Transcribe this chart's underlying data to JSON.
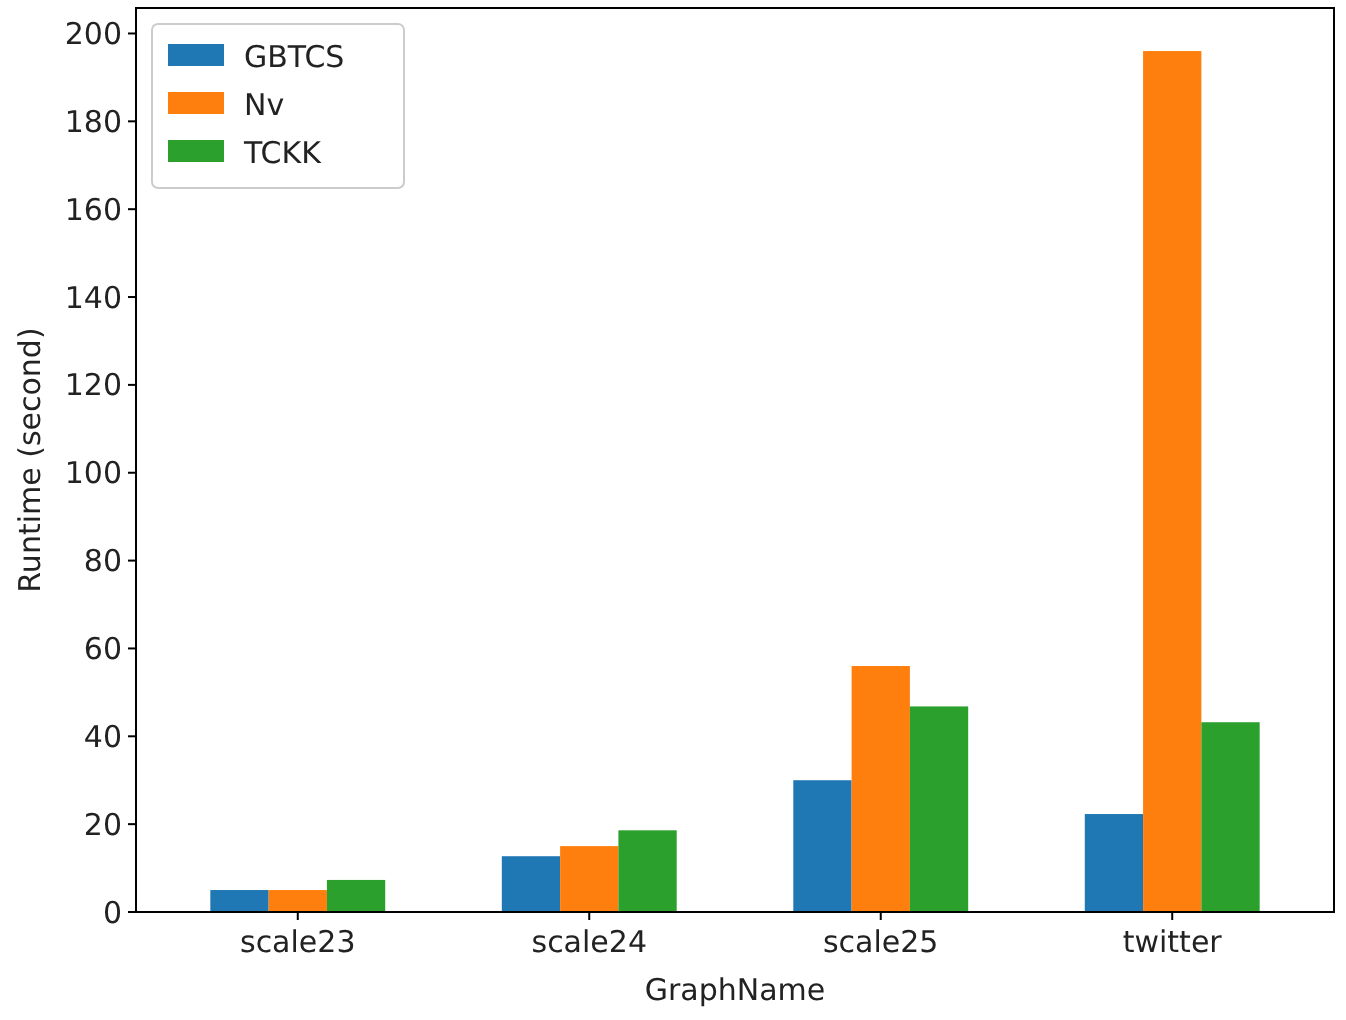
{
  "chart_data": {
    "type": "bar",
    "xlabel": "GraphName",
    "ylabel": "Runtime (second)",
    "categories": [
      "scale23",
      "scale24",
      "scale25",
      "twitter"
    ],
    "series": [
      {
        "name": "GBTCS",
        "color": "#1f77b4",
        "values": [
          5,
          12.7,
          30,
          22.3
        ]
      },
      {
        "name": "Nv",
        "color": "#ff7f0e",
        "values": [
          5,
          15,
          56,
          196
        ]
      },
      {
        "name": "TCKK",
        "color": "#2ca02c",
        "values": [
          7.3,
          18.6,
          46.8,
          43.2
        ]
      }
    ],
    "ylim": [
      0,
      205.8
    ],
    "yticks": [
      0,
      20,
      40,
      60,
      80,
      100,
      120,
      140,
      160,
      180,
      200
    ],
    "grid": false,
    "legend": "top left"
  }
}
